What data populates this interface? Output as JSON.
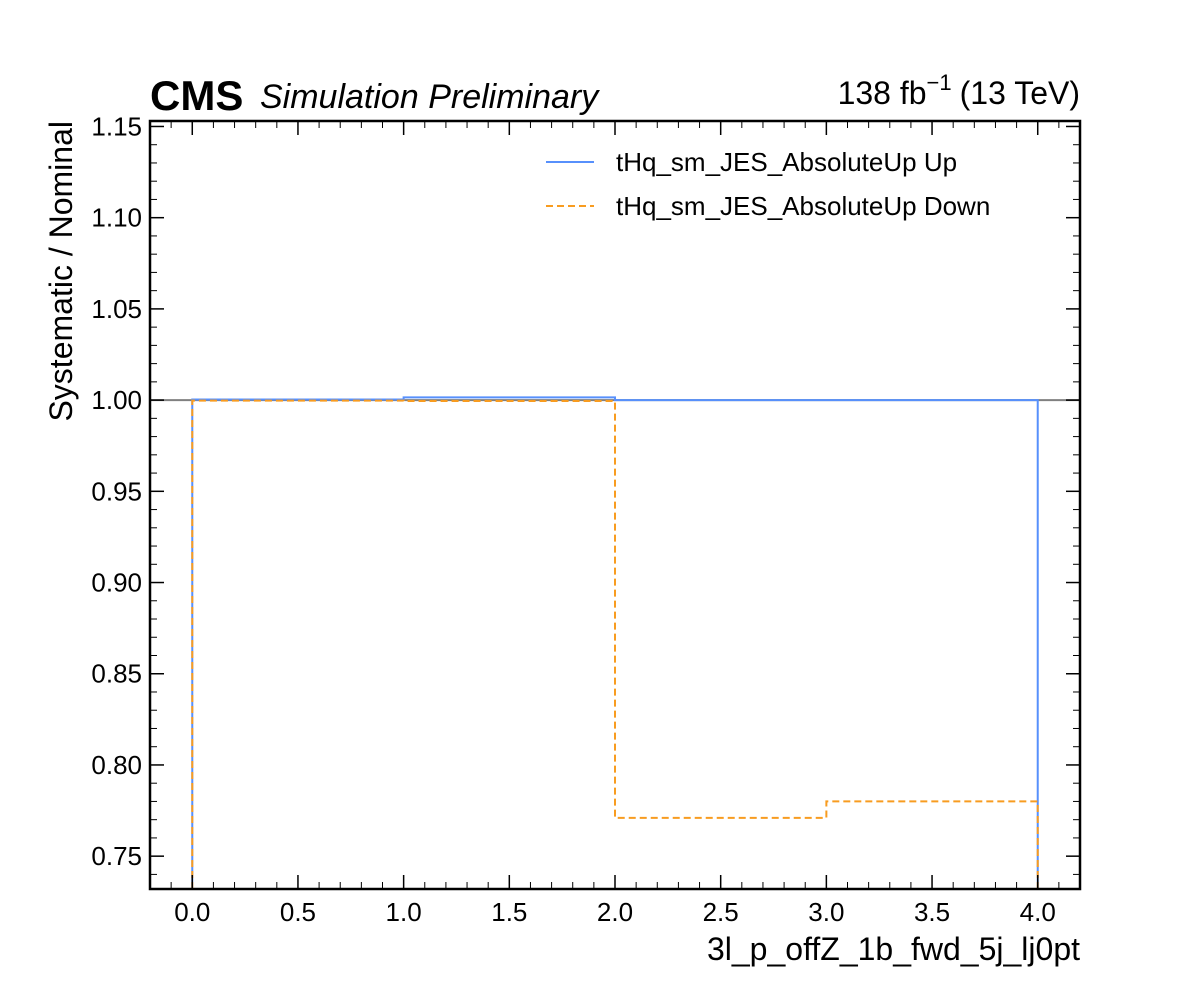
{
  "header": {
    "experiment": "CMS",
    "status": "Simulation Preliminary",
    "lumi_value": "138 fb",
    "lumi_exponent": "−1",
    "energy": "(13 TeV)"
  },
  "chart_data": {
    "type": "line",
    "style": "step histogram",
    "xlabel": "3l_p_offZ_1b_fwd_5j_lj0pt",
    "ylabel": "Systematic / Nominal",
    "xlim": [
      -0.2,
      4.2
    ],
    "ylim": [
      0.732,
      1.153
    ],
    "xticks": [
      0.0,
      0.5,
      1.0,
      1.5,
      2.0,
      2.5,
      3.0,
      3.5,
      4.0
    ],
    "xtick_labels": [
      "0.0",
      "0.5",
      "1.0",
      "1.5",
      "2.0",
      "2.5",
      "3.0",
      "3.5",
      "4.0"
    ],
    "yticks": [
      0.75,
      0.8,
      0.85,
      0.9,
      0.95,
      1.0,
      1.05,
      1.1,
      1.15
    ],
    "ytick_labels": [
      "0.75",
      "0.80",
      "0.85",
      "0.90",
      "0.95",
      "1.00",
      "1.05",
      "1.10",
      "1.15"
    ],
    "bin_edges": [
      0,
      1,
      2,
      3,
      4
    ],
    "series": [
      {
        "name": "tHq_sm_JES_AbsoluteUp Up",
        "values": [
          1.0003,
          1.0015,
          1.0,
          1.0
        ],
        "color": "#5790fc",
        "dash": "solid"
      },
      {
        "name": "tHq_sm_JES_AbsoluteUp Down",
        "values": [
          0.9997,
          0.9995,
          0.771,
          0.78
        ],
        "color": "#f89c20",
        "dash": "dashed"
      }
    ],
    "reference_line": {
      "y": 1.0,
      "color": "#808080"
    },
    "legend_position": "top-right",
    "grid": false
  }
}
